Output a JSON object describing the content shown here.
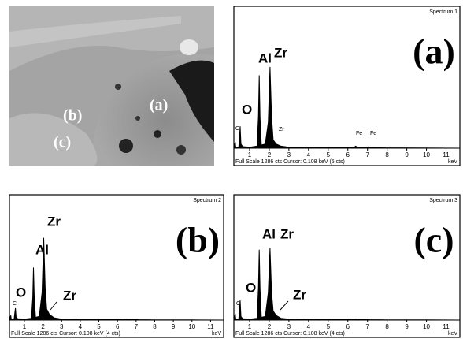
{
  "micrograph": {
    "labels": [
      "(a)",
      "(b)",
      "(c)"
    ]
  },
  "chart_data": [
    {
      "type": "area",
      "title": "(a)",
      "subtitle": "Spectrum 1",
      "x_label": "keV",
      "footer": "Full Scale 1286 cts  Cursor: 0.108 keV (5 cts)",
      "annotations": [
        "C",
        "O",
        "Al",
        "Zr",
        "Zr",
        "Fe",
        "Fe"
      ],
      "x": [
        0.2,
        0.24,
        0.27,
        0.3,
        0.45,
        0.5,
        0.52,
        0.56,
        0.65,
        1.0,
        1.38,
        1.45,
        1.49,
        1.53,
        1.6,
        1.8,
        1.95,
        2.04,
        2.12,
        2.2,
        2.35,
        2.6,
        3.0,
        4.0,
        5.0,
        6.3,
        6.4,
        6.5,
        7.0,
        7.06,
        7.12,
        8.0,
        10.0,
        11.7
      ],
      "values": [
        0,
        40,
        60,
        5,
        10,
        150,
        210,
        40,
        15,
        10,
        20,
        300,
        700,
        300,
        30,
        40,
        250,
        780,
        300,
        80,
        40,
        20,
        10,
        8,
        5,
        5,
        20,
        5,
        5,
        15,
        5,
        3,
        2,
        0
      ],
      "color": "#000000",
      "xlim": [
        0.2,
        11.7
      ],
      "ylim": [
        0,
        1286
      ],
      "xticks": [
        1,
        2,
        3,
        4,
        5,
        6,
        7,
        8,
        9,
        10,
        11
      ]
    },
    {
      "type": "area",
      "title": "(b)",
      "subtitle": "Spectrum 2",
      "x_label": "keV",
      "footer": "Full Scale 1286 cts  Cursor: 0.108 keV (4 cts)",
      "annotations": [
        "C",
        "O",
        "Al",
        "Zr",
        "Zr"
      ],
      "x": [
        0.2,
        0.24,
        0.27,
        0.3,
        0.45,
        0.5,
        0.52,
        0.56,
        0.65,
        1.0,
        1.38,
        1.45,
        1.49,
        1.53,
        1.6,
        1.8,
        1.95,
        2.04,
        2.12,
        2.2,
        2.35,
        2.6,
        3.0,
        4.0,
        5.0,
        6.3,
        6.4,
        6.5,
        7.0,
        7.06,
        7.12,
        8.0,
        10.0,
        11.7
      ],
      "values": [
        0,
        30,
        50,
        5,
        10,
        100,
        130,
        30,
        15,
        10,
        20,
        250,
        575,
        250,
        30,
        40,
        300,
        900,
        350,
        120,
        60,
        25,
        10,
        6,
        4,
        4,
        8,
        4,
        4,
        6,
        4,
        3,
        2,
        0
      ],
      "color": "#000000",
      "xlim": [
        0.2,
        11.7
      ],
      "ylim": [
        0,
        1286
      ],
      "xticks": [
        1,
        2,
        3,
        4,
        5,
        6,
        7,
        8,
        9,
        10,
        11
      ]
    },
    {
      "type": "area",
      "title": "(c)",
      "subtitle": "Spectrum 3",
      "x_label": "keV",
      "footer": "Full Scale 1286 cts  Cursor: 0.108 keV (4 cts)",
      "annotations": [
        "C",
        "O",
        "Al",
        "Zr",
        "Zr"
      ],
      "x": [
        0.2,
        0.24,
        0.27,
        0.3,
        0.45,
        0.5,
        0.52,
        0.56,
        0.65,
        1.0,
        1.38,
        1.45,
        1.49,
        1.53,
        1.6,
        1.8,
        1.95,
        2.04,
        2.12,
        2.2,
        2.35,
        2.6,
        3.0,
        4.0,
        5.0,
        6.3,
        6.4,
        6.5,
        7.0,
        7.06,
        7.12,
        8.0,
        10.0,
        11.7
      ],
      "values": [
        0,
        40,
        70,
        5,
        10,
        160,
        215,
        40,
        15,
        10,
        20,
        350,
        770,
        350,
        30,
        40,
        300,
        790,
        300,
        100,
        50,
        20,
        10,
        6,
        4,
        4,
        8,
        4,
        4,
        6,
        4,
        3,
        2,
        0
      ],
      "color": "#000000",
      "xlim": [
        0.2,
        11.7
      ],
      "ylim": [
        0,
        1286
      ],
      "xticks": [
        1,
        2,
        3,
        4,
        5,
        6,
        7,
        8,
        9,
        10,
        11
      ]
    }
  ]
}
